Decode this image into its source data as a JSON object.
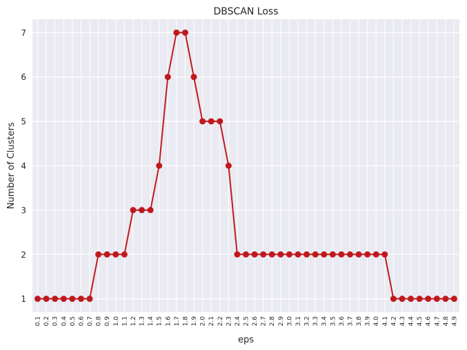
{
  "chart_data": {
    "type": "line",
    "title": "DBSCAN Loss",
    "xlabel": "eps",
    "ylabel": "Number of Clusters",
    "x": [
      "0.1",
      "0.2",
      "0.3",
      "0.4",
      "0.5",
      "0.6",
      "0.7",
      "0.8",
      "0.9",
      "1.0",
      "1.1",
      "1.2",
      "1.3",
      "1.4",
      "1.5",
      "1.6",
      "1.7",
      "1.8",
      "1.9",
      "2.0",
      "2.1",
      "2.2",
      "2.3",
      "2.4",
      "2.5",
      "2.6",
      "2.7",
      "2.8",
      "2.9",
      "3.0",
      "3.1",
      "3.2",
      "3.3",
      "3.4",
      "3.5",
      "3.6",
      "3.7",
      "3.8",
      "3.9",
      "4.0",
      "4.1",
      "4.2",
      "4.3",
      "4.4",
      "4.5",
      "4.6",
      "4.7",
      "4.8",
      "4.9"
    ],
    "values": [
      1,
      1,
      1,
      1,
      1,
      1,
      1,
      2,
      2,
      2,
      2,
      3,
      3,
      3,
      4,
      6,
      7,
      7,
      6,
      5,
      5,
      5,
      4,
      2,
      2,
      2,
      2,
      2,
      2,
      2,
      2,
      2,
      2,
      2,
      2,
      2,
      2,
      2,
      2,
      2,
      2,
      1,
      1,
      1,
      1,
      1,
      1,
      1,
      1
    ],
    "ylim": [
      0.7,
      7.3
    ],
    "yticks": [
      1,
      2,
      3,
      4,
      5,
      6,
      7
    ],
    "grid": true,
    "colors": {
      "line": "#c0191c",
      "background": "#eaeaf2",
      "grid": "#ffffff"
    }
  }
}
